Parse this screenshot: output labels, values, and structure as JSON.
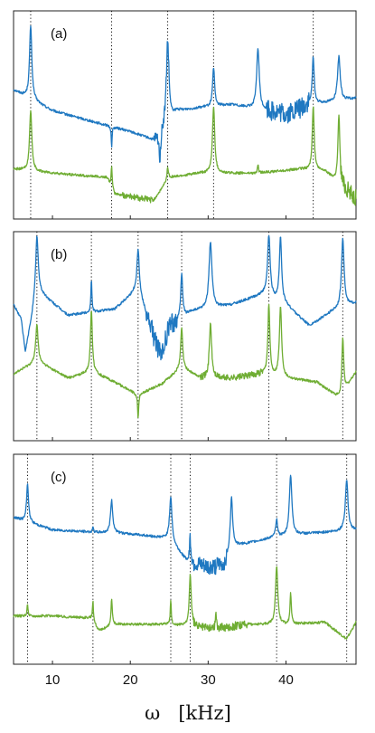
{
  "chart_data": {
    "type": "line",
    "xlabel": "ω   [kHz]",
    "x_range": [
      5,
      49
    ],
    "x_ticks": [
      10,
      20,
      30,
      40
    ],
    "shared_x_axis": true,
    "legend": "none",
    "grid": false,
    "series_colors": {
      "top": "#1f78c1",
      "bottom": "#6fad33"
    },
    "panels": [
      {
        "label": "(a)",
        "dotted_lines_x": [
          7.2,
          17.6,
          24.8,
          30.7,
          43.5
        ],
        "series": [
          {
            "role": "top",
            "baseline": [
              [
                5,
                0.62
              ],
              [
                10,
                0.52
              ],
              [
                15,
                0.47
              ],
              [
                20,
                0.42
              ],
              [
                23,
                0.38
              ],
              [
                26,
                0.52
              ],
              [
                30,
                0.54
              ],
              [
                33,
                0.55
              ],
              [
                38,
                0.52
              ],
              [
                40,
                0.5
              ],
              [
                43,
                0.55
              ],
              [
                49,
                0.58
              ]
            ],
            "peaks": [
              [
                7.2,
                0.93,
                0.35
              ],
              [
                17.6,
                0.34,
                0.12
              ],
              [
                23.8,
                0.28,
                0.3
              ],
              [
                24.8,
                0.86,
                0.4
              ],
              [
                30.7,
                0.73,
                0.3
              ],
              [
                36.4,
                0.82,
                0.4
              ],
              [
                43.5,
                0.78,
                0.3
              ],
              [
                46.8,
                0.78,
                0.4
              ]
            ],
            "noise": [
              [
                23,
                25,
                0.03
              ],
              [
                37.5,
                43,
                0.05
              ]
            ]
          },
          {
            "role": "bottom",
            "baseline": [
              [
                5,
                0.24
              ],
              [
                10,
                0.22
              ],
              [
                17,
                0.2
              ],
              [
                18,
                0.12
              ],
              [
                23,
                0.09
              ],
              [
                25,
                0.2
              ],
              [
                29,
                0.22
              ],
              [
                36,
                0.22
              ],
              [
                42,
                0.24
              ],
              [
                45,
                0.23
              ],
              [
                49,
                0.1
              ]
            ],
            "peaks": [
              [
                7.2,
                0.52,
                0.35
              ],
              [
                17.6,
                0.26,
                0.15
              ],
              [
                24.8,
                0.25,
                0.2
              ],
              [
                30.7,
                0.54,
                0.35
              ],
              [
                36.4,
                0.26,
                0.15
              ],
              [
                43.5,
                0.54,
                0.3
              ],
              [
                46.8,
                0.5,
                0.3
              ]
            ],
            "noise": [
              [
                19,
                23,
                0.015
              ],
              [
                47,
                49,
                0.04
              ]
            ]
          }
        ]
      },
      {
        "label": "(b)",
        "dotted_lines_x": [
          8.0,
          15.0,
          21.0,
          26.6,
          37.8,
          47.3
        ],
        "series": [
          {
            "role": "top",
            "baseline": [
              [
                5,
                0.65
              ],
              [
                6,
                0.58
              ],
              [
                6.5,
                0.42
              ],
              [
                8,
                0.72
              ],
              [
                12,
                0.6
              ],
              [
                18,
                0.63
              ],
              [
                21,
                0.73
              ],
              [
                23,
                0.5
              ],
              [
                24,
                0.4
              ],
              [
                25,
                0.55
              ],
              [
                28,
                0.62
              ],
              [
                33,
                0.65
              ],
              [
                37,
                0.7
              ],
              [
                40,
                0.65
              ],
              [
                43,
                0.55
              ],
              [
                46,
                0.62
              ],
              [
                49,
                0.66
              ]
            ],
            "peaks": [
              [
                8.0,
                0.98,
                0.4
              ],
              [
                15.0,
                0.78,
                0.15
              ],
              [
                21.0,
                0.92,
                0.35
              ],
              [
                26.6,
                0.8,
                0.3
              ],
              [
                30.3,
                0.95,
                0.45
              ],
              [
                37.8,
                0.98,
                0.4
              ],
              [
                39.3,
                0.97,
                0.35
              ],
              [
                47.3,
                0.97,
                0.4
              ]
            ],
            "noise": [
              [
                22,
                26,
                0.05
              ]
            ]
          },
          {
            "role": "bottom",
            "baseline": [
              [
                5,
                0.32
              ],
              [
                8,
                0.38
              ],
              [
                12,
                0.3
              ],
              [
                15,
                0.33
              ],
              [
                18,
                0.28
              ],
              [
                21,
                0.22
              ],
              [
                24,
                0.27
              ],
              [
                26.6,
                0.35
              ],
              [
                29,
                0.3
              ],
              [
                33,
                0.3
              ],
              [
                37,
                0.32
              ],
              [
                40,
                0.3
              ],
              [
                44,
                0.28
              ],
              [
                47,
                0.2
              ],
              [
                49,
                0.33
              ]
            ],
            "peaks": [
              [
                8.0,
                0.56,
                0.35
              ],
              [
                15.0,
                0.62,
                0.3
              ],
              [
                21.0,
                0.1,
                0.15
              ],
              [
                26.6,
                0.54,
                0.3
              ],
              [
                30.3,
                0.56,
                0.35
              ],
              [
                37.8,
                0.65,
                0.3
              ],
              [
                39.3,
                0.64,
                0.35
              ],
              [
                47.3,
                0.49,
                0.3
              ]
            ],
            "noise": [
              [
                29,
                37,
                0.015
              ]
            ]
          }
        ]
      },
      {
        "label": "(c)",
        "dotted_lines_x": [
          6.8,
          15.2,
          25.2,
          27.7,
          38.8,
          47.8
        ],
        "series": [
          {
            "role": "top",
            "baseline": [
              [
                5,
                0.7
              ],
              [
                10,
                0.64
              ],
              [
                15,
                0.63
              ],
              [
                20,
                0.62
              ],
              [
                25,
                0.6
              ],
              [
                27.5,
                0.48
              ],
              [
                30,
                0.46
              ],
              [
                32,
                0.47
              ],
              [
                33,
                0.56
              ],
              [
                38,
                0.6
              ],
              [
                42,
                0.62
              ],
              [
                49,
                0.64
              ]
            ],
            "peaks": [
              [
                6.8,
                0.86,
                0.3
              ],
              [
                15.2,
                0.66,
                0.1
              ],
              [
                17.6,
                0.78,
                0.35
              ],
              [
                25.2,
                0.8,
                0.35
              ],
              [
                27.7,
                0.6,
                0.25
              ],
              [
                33.0,
                0.8,
                0.35
              ],
              [
                38.8,
                0.69,
                0.3
              ],
              [
                40.6,
                0.9,
                0.4
              ],
              [
                47.8,
                0.88,
                0.4
              ]
            ],
            "noise": [
              [
                27.5,
                32.5,
                0.04
              ]
            ]
          },
          {
            "role": "bottom",
            "baseline": [
              [
                5,
                0.23
              ],
              [
                10,
                0.23
              ],
              [
                15,
                0.22
              ],
              [
                16,
                0.16
              ],
              [
                18,
                0.19
              ],
              [
                25,
                0.19
              ],
              [
                28,
                0.18
              ],
              [
                31,
                0.17
              ],
              [
                35,
                0.19
              ],
              [
                40,
                0.19
              ],
              [
                45,
                0.2
              ],
              [
                47.8,
                0.12
              ],
              [
                49,
                0.2
              ]
            ],
            "peaks": [
              [
                6.8,
                0.29,
                0.15
              ],
              [
                15.2,
                0.3,
                0.15
              ],
              [
                17.6,
                0.31,
                0.2
              ],
              [
                25.2,
                0.31,
                0.15
              ],
              [
                27.7,
                0.43,
                0.3
              ],
              [
                31.0,
                0.26,
                0.15
              ],
              [
                38.8,
                0.47,
                0.35
              ],
              [
                40.6,
                0.34,
                0.2
              ]
            ],
            "noise": [
              [
                28,
                35,
                0.02
              ]
            ]
          }
        ]
      }
    ]
  }
}
